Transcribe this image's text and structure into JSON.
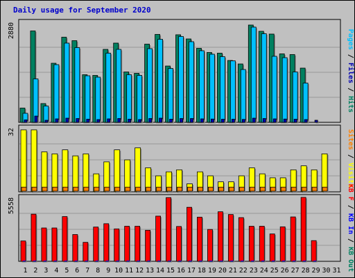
{
  "chart_data": {
    "type": "bar",
    "title": "Daily usage for September 2020",
    "categories": [
      "1",
      "2",
      "3",
      "4",
      "5",
      "6",
      "7",
      "8",
      "9",
      "10",
      "11",
      "12",
      "13",
      "14",
      "15",
      "16",
      "17",
      "18",
      "19",
      "20",
      "21",
      "22",
      "23",
      "24",
      "25",
      "26",
      "27",
      "28",
      "29",
      "30",
      "31"
    ],
    "weekend_days": [
      5,
      6,
      12,
      13,
      19,
      20,
      26,
      27
    ],
    "colors": {
      "hits": "#008060",
      "files": "#00c0ff",
      "pages": "#0000b0",
      "visits": "#ffff00",
      "sites": "#ff8000",
      "kbytes_out": "#008060",
      "kbytes_in": "#0000ff",
      "kbytes_f": "#ff0000",
      "weekend_tick": "#008060",
      "weekday_tick": "#000000"
    },
    "panels": [
      {
        "name": "hits-files-pages",
        "ymax_label": "2880",
        "ylim": [
          0,
          2880
        ],
        "ylabel_parts": [
          {
            "text": "Pages",
            "color": "#00c0ff"
          },
          {
            "text": " / ",
            "color": "#000000"
          },
          {
            "text": "Files",
            "color": "#0000b0"
          },
          {
            "text": " / ",
            "color": "#000000"
          },
          {
            "text": "Hits",
            "color": "#008060"
          }
        ],
        "series": [
          {
            "name": "Hits",
            "color": "#008060",
            "values": [
              410,
              2630,
              540,
              1700,
              2450,
              2350,
              1370,
              1350,
              2100,
              2280,
              1450,
              1410,
              2250,
              2530,
              1620,
              2520,
              2400,
              2130,
              2010,
              1990,
              1780,
              1680,
              2800,
              2620,
              2540,
              1970,
              1950,
              1560,
              0,
              0,
              0
            ]
          },
          {
            "name": "Files",
            "color": "#00c0ff",
            "values": [
              260,
              1250,
              470,
              1660,
              2280,
              2150,
              1340,
              1300,
              1990,
              2100,
              1370,
              1350,
              2120,
              2390,
              1550,
              2470,
              2320,
              2060,
              1960,
              1890,
              1770,
              1520,
              2740,
              2550,
              1900,
              1860,
              1450,
              1130,
              0,
              0,
              0
            ]
          },
          {
            "name": "Pages",
            "color": "#0000b0",
            "values": [
              70,
              180,
              60,
              100,
              120,
              110,
              90,
              80,
              100,
              110,
              90,
              80,
              110,
              120,
              90,
              110,
              110,
              100,
              95,
              90,
              90,
              85,
              120,
              110,
              100,
              95,
              90,
              80,
              60,
              0,
              0
            ]
          }
        ]
      },
      {
        "name": "visits-sites",
        "ymax_label": "32",
        "ylim": [
          0,
          32
        ],
        "ylabel_parts": [
          {
            "text": "Sites",
            "color": "#ff8000"
          },
          {
            "text": " / ",
            "color": "#000000"
          },
          {
            "text": "Visits",
            "color": "#ffff00"
          }
        ],
        "series": [
          {
            "name": "Visits",
            "color": "#ffff00",
            "values": [
              31,
              31,
              20,
              19,
              21,
              18,
              19,
              9,
              15,
              21,
              16,
              22,
              12,
              8,
              10,
              11,
              4,
              10,
              8,
              5,
              5,
              8,
              12,
              9,
              7,
              7,
              11,
              13,
              11,
              19,
              0
            ]
          },
          {
            "name": "Sites",
            "color": "#ff8000",
            "values": [
              2,
              2,
              2,
              2,
              2,
              2,
              2,
              2,
              2,
              2,
              2,
              2,
              2,
              2,
              2,
              2,
              2,
              2,
              2,
              2,
              2,
              2,
              2,
              2,
              2,
              2,
              2,
              2,
              2,
              2,
              0
            ]
          }
        ]
      },
      {
        "name": "kbytes",
        "ymax_label": "5558",
        "ylim": [
          0,
          5558
        ],
        "ylabel_parts": [
          {
            "text": "KB F",
            "color": "#ff0000"
          },
          {
            "text": " / ",
            "color": "#000000"
          },
          {
            "text": "KB In",
            "color": "#0000ff"
          },
          {
            "text": " / ",
            "color": "#000000"
          },
          {
            "text": "KB Out",
            "color": "#008060"
          }
        ],
        "series": [
          {
            "name": "KB F",
            "color": "#ff0000",
            "values": [
              1770,
              4100,
              2900,
              2900,
              3890,
              2330,
              1650,
              2980,
              3270,
              2820,
              3050,
              3050,
              2700,
              3930,
              5540,
              3030,
              4700,
              3840,
              2770,
              4310,
              4070,
              3800,
              3050,
              3050,
              2380,
              3000,
              3860,
              5560,
              1800,
              0,
              0
            ]
          },
          {
            "name": "KB In",
            "color": "#0000ff",
            "values": [
              10,
              60,
              10,
              10,
              10,
              10,
              10,
              10,
              10,
              10,
              10,
              10,
              10,
              10,
              10,
              10,
              10,
              10,
              10,
              10,
              10,
              10,
              10,
              10,
              10,
              10,
              10,
              10,
              10,
              0,
              0
            ]
          },
          {
            "name": "KB Out",
            "color": "#008060",
            "values": [
              0,
              0,
              0,
              0,
              0,
              0,
              0,
              0,
              0,
              0,
              0,
              0,
              0,
              0,
              0,
              0,
              0,
              0,
              0,
              0,
              0,
              0,
              0,
              0,
              0,
              0,
              0,
              0,
              0,
              0,
              0
            ]
          }
        ]
      }
    ]
  }
}
